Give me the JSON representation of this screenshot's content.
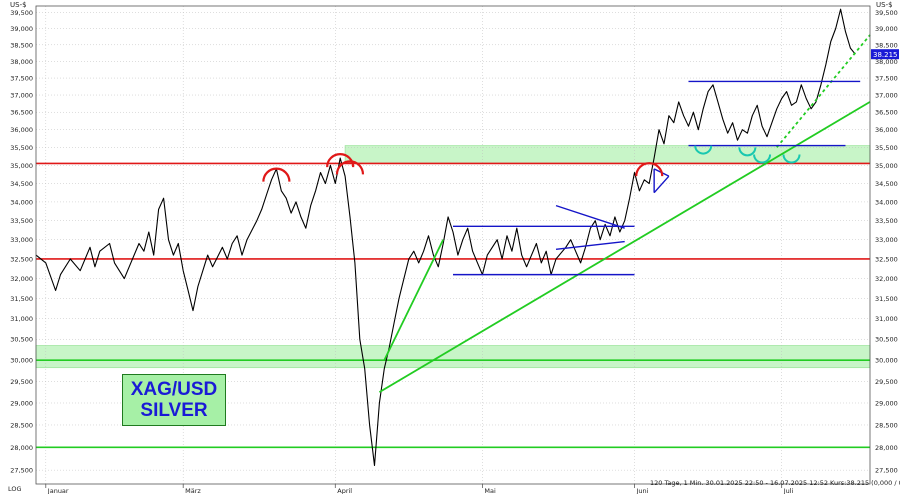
{
  "chart_data": {
    "type": "line",
    "title": "",
    "instrument": {
      "line1": "XAG/USD",
      "line2": "SILVER"
    },
    "unit_left": "US-$",
    "unit_right": "US-$",
    "scale_label": "LOG",
    "footer": "120 Tage, 1 Min. 30.01.2025 22:50 - 16.07.2025 12:52 Kurs:38.215 (0,000 / 0,000%)",
    "last_price_label": "38.215",
    "last_price": 38.215,
    "ylim": [
      27.2,
      39.7
    ],
    "yscale": "log",
    "y_ticks": [
      27.5,
      28.0,
      28.5,
      29.0,
      29.5,
      30.0,
      30.5,
      31.0,
      31.5,
      32.0,
      32.5,
      33.0,
      33.5,
      34.0,
      34.5,
      35.0,
      35.5,
      36.0,
      36.5,
      37.0,
      37.5,
      38.0,
      38.5,
      39.0,
      39.5
    ],
    "y_tick_labels": [
      "27,500",
      "28,000",
      "28,500",
      "29,000",
      "29,500",
      "30,000",
      "30,500",
      "31,000",
      "31,500",
      "32,000",
      "32,500",
      "33,000",
      "33,500",
      "34,000",
      "34,500",
      "35,000",
      "35,500",
      "36,000",
      "36,500",
      "37,000",
      "37,500",
      "38,000",
      "38,500",
      "39,000",
      "39,500"
    ],
    "xlim": [
      "2025-01-30",
      "2025-07-19"
    ],
    "x_ticks": [
      {
        "date": "2025-02-01",
        "label": "Januar"
      },
      {
        "date": "2025-03-01",
        "label": "März"
      },
      {
        "date": "2025-04-01",
        "label": "April"
      },
      {
        "date": "2025-05-01",
        "label": "Mai"
      },
      {
        "date": "2025-06-01",
        "label": "Juni"
      },
      {
        "date": "2025-07-01",
        "label": "Juli"
      }
    ],
    "grid": true,
    "series": [
      {
        "name": "",
        "color": "#000000",
        "points": [
          [
            "2025-01-30",
            32.6
          ],
          [
            "2025-02-01",
            32.4
          ],
          [
            "2025-02-03",
            31.7
          ],
          [
            "2025-02-04",
            32.1
          ],
          [
            "2025-02-06",
            32.5
          ],
          [
            "2025-02-08",
            32.2
          ],
          [
            "2025-02-10",
            32.8
          ],
          [
            "2025-02-11",
            32.3
          ],
          [
            "2025-02-12",
            32.7
          ],
          [
            "2025-02-14",
            32.9
          ],
          [
            "2025-02-15",
            32.4
          ],
          [
            "2025-02-17",
            32.0
          ],
          [
            "2025-02-18",
            32.3
          ],
          [
            "2025-02-20",
            32.9
          ],
          [
            "2025-02-21",
            32.7
          ],
          [
            "2025-02-22",
            33.2
          ],
          [
            "2025-02-23",
            32.6
          ],
          [
            "2025-02-24",
            33.8
          ],
          [
            "2025-02-25",
            34.1
          ],
          [
            "2025-02-26",
            33.0
          ],
          [
            "2025-02-27",
            32.6
          ],
          [
            "2025-02-28",
            32.9
          ],
          [
            "2025-03-01",
            32.2
          ],
          [
            "2025-03-02",
            31.7
          ],
          [
            "2025-03-03",
            31.2
          ],
          [
            "2025-03-04",
            31.8
          ],
          [
            "2025-03-06",
            32.6
          ],
          [
            "2025-03-07",
            32.3
          ],
          [
            "2025-03-09",
            32.8
          ],
          [
            "2025-03-10",
            32.5
          ],
          [
            "2025-03-11",
            32.9
          ],
          [
            "2025-03-12",
            33.1
          ],
          [
            "2025-03-13",
            32.6
          ],
          [
            "2025-03-14",
            33.0
          ],
          [
            "2025-03-16",
            33.5
          ],
          [
            "2025-03-17",
            33.8
          ],
          [
            "2025-03-18",
            34.2
          ],
          [
            "2025-03-19",
            34.6
          ],
          [
            "2025-03-20",
            34.9
          ],
          [
            "2025-03-21",
            34.3
          ],
          [
            "2025-03-22",
            34.1
          ],
          [
            "2025-03-23",
            33.7
          ],
          [
            "2025-03-24",
            34.0
          ],
          [
            "2025-03-25",
            33.6
          ],
          [
            "2025-03-26",
            33.3
          ],
          [
            "2025-03-27",
            33.9
          ],
          [
            "2025-03-28",
            34.3
          ],
          [
            "2025-03-29",
            34.8
          ],
          [
            "2025-03-30",
            34.5
          ],
          [
            "2025-03-31",
            35.0
          ],
          [
            "2025-04-01",
            34.5
          ],
          [
            "2025-04-02",
            35.2
          ],
          [
            "2025-04-03",
            34.7
          ],
          [
            "2025-04-04",
            33.6
          ],
          [
            "2025-04-05",
            32.4
          ],
          [
            "2025-04-06",
            30.5
          ],
          [
            "2025-04-07",
            29.8
          ],
          [
            "2025-04-08",
            28.5
          ],
          [
            "2025-04-09",
            27.6
          ],
          [
            "2025-04-10",
            29.0
          ],
          [
            "2025-04-11",
            29.8
          ],
          [
            "2025-04-12",
            30.3
          ],
          [
            "2025-04-13",
            30.9
          ],
          [
            "2025-04-14",
            31.5
          ],
          [
            "2025-04-15",
            32.0
          ],
          [
            "2025-04-16",
            32.5
          ],
          [
            "2025-04-17",
            32.7
          ],
          [
            "2025-04-18",
            32.4
          ],
          [
            "2025-04-19",
            32.7
          ],
          [
            "2025-04-20",
            33.1
          ],
          [
            "2025-04-21",
            32.6
          ],
          [
            "2025-04-22",
            32.3
          ],
          [
            "2025-04-23",
            32.9
          ],
          [
            "2025-04-24",
            33.6
          ],
          [
            "2025-04-25",
            33.2
          ],
          [
            "2025-04-26",
            32.6
          ],
          [
            "2025-04-27",
            33.0
          ],
          [
            "2025-04-28",
            33.3
          ],
          [
            "2025-04-29",
            32.7
          ],
          [
            "2025-04-30",
            32.4
          ],
          [
            "2025-05-01",
            32.1
          ],
          [
            "2025-05-02",
            32.6
          ],
          [
            "2025-05-04",
            33.0
          ],
          [
            "2025-05-05",
            32.5
          ],
          [
            "2025-05-06",
            33.1
          ],
          [
            "2025-05-07",
            32.7
          ],
          [
            "2025-05-08",
            33.3
          ],
          [
            "2025-05-09",
            32.6
          ],
          [
            "2025-05-10",
            32.3
          ],
          [
            "2025-05-12",
            32.9
          ],
          [
            "2025-05-13",
            32.4
          ],
          [
            "2025-05-14",
            32.7
          ],
          [
            "2025-05-15",
            32.1
          ],
          [
            "2025-05-16",
            32.5
          ],
          [
            "2025-05-18",
            32.8
          ],
          [
            "2025-05-19",
            33.0
          ],
          [
            "2025-05-20",
            32.7
          ],
          [
            "2025-05-21",
            32.4
          ],
          [
            "2025-05-22",
            32.8
          ],
          [
            "2025-05-23",
            33.3
          ],
          [
            "2025-05-24",
            33.5
          ],
          [
            "2025-05-25",
            33.0
          ],
          [
            "2025-05-26",
            33.4
          ],
          [
            "2025-05-27",
            33.1
          ],
          [
            "2025-05-28",
            33.6
          ],
          [
            "2025-05-29",
            33.2
          ],
          [
            "2025-05-30",
            33.5
          ],
          [
            "2025-05-31",
            34.1
          ],
          [
            "2025-06-01",
            34.8
          ],
          [
            "2025-06-02",
            34.3
          ],
          [
            "2025-06-03",
            34.6
          ],
          [
            "2025-06-04",
            34.5
          ],
          [
            "2025-06-05",
            35.2
          ],
          [
            "2025-06-06",
            36.0
          ],
          [
            "2025-06-07",
            35.6
          ],
          [
            "2025-06-08",
            36.4
          ],
          [
            "2025-06-09",
            36.2
          ],
          [
            "2025-06-10",
            36.8
          ],
          [
            "2025-06-11",
            36.4
          ],
          [
            "2025-06-12",
            36.1
          ],
          [
            "2025-06-13",
            36.5
          ],
          [
            "2025-06-14",
            36.0
          ],
          [
            "2025-06-15",
            36.6
          ],
          [
            "2025-06-16",
            37.1
          ],
          [
            "2025-06-17",
            37.3
          ],
          [
            "2025-06-18",
            36.8
          ],
          [
            "2025-06-19",
            36.3
          ],
          [
            "2025-06-20",
            35.9
          ],
          [
            "2025-06-21",
            36.2
          ],
          [
            "2025-06-22",
            35.7
          ],
          [
            "2025-06-23",
            36.0
          ],
          [
            "2025-06-24",
            35.9
          ],
          [
            "2025-06-25",
            36.4
          ],
          [
            "2025-06-26",
            36.7
          ],
          [
            "2025-06-27",
            36.1
          ],
          [
            "2025-06-28",
            35.8
          ],
          [
            "2025-06-29",
            36.2
          ],
          [
            "2025-06-30",
            36.6
          ],
          [
            "2025-07-01",
            36.9
          ],
          [
            "2025-07-02",
            37.1
          ],
          [
            "2025-07-03",
            36.7
          ],
          [
            "2025-07-04",
            36.8
          ],
          [
            "2025-07-05",
            37.3
          ],
          [
            "2025-07-06",
            36.9
          ],
          [
            "2025-07-07",
            36.6
          ],
          [
            "2025-07-08",
            36.8
          ],
          [
            "2025-07-09",
            37.3
          ],
          [
            "2025-07-10",
            37.9
          ],
          [
            "2025-07-11",
            38.6
          ],
          [
            "2025-07-12",
            39.0
          ],
          [
            "2025-07-13",
            39.6
          ],
          [
            "2025-07-14",
            38.9
          ],
          [
            "2025-07-15",
            38.4
          ],
          [
            "2025-07-16",
            38.215
          ]
        ]
      }
    ],
    "annotations": {
      "horizontal_lines": [
        {
          "y": 35.05,
          "color": "#e01818"
        },
        {
          "y": 32.5,
          "color": "#e01818"
        },
        {
          "y": 30.0,
          "color": "#22cc22"
        },
        {
          "y": 28.0,
          "color": "#22cc22"
        }
      ],
      "zones": [
        {
          "y_from": 35.05,
          "y_to": 35.55,
          "x_from": "2025-04-03",
          "x_to": "2025-07-19",
          "color": "#c8f5c8"
        },
        {
          "y_from": 29.82,
          "y_to": 30.35,
          "x_from": "2025-01-30",
          "x_to": "2025-07-19",
          "color": "#c8f5c8"
        }
      ],
      "trendlines": [
        {
          "from": [
            "2025-04-10",
            29.25
          ],
          "to": [
            "2025-07-19",
            36.8
          ],
          "color": "#22cc22",
          "dashed": false
        },
        {
          "from": [
            "2025-06-30",
            35.5
          ],
          "to": [
            "2025-07-19",
            38.8
          ],
          "color": "#22cc22",
          "dashed": true
        },
        {
          "from": [
            "2025-04-11",
            30.0
          ],
          "to": [
            "2025-04-23",
            33.0
          ],
          "color": "#22cc22",
          "dashed": false
        }
      ],
      "blue_lines": [
        {
          "from": [
            "2025-04-25",
            33.35
          ],
          "to": [
            "2025-06-01",
            33.35
          ]
        },
        {
          "from": [
            "2025-04-25",
            32.1
          ],
          "to": [
            "2025-06-01",
            32.1
          ]
        },
        {
          "from": [
            "2025-06-12",
            37.4
          ],
          "to": [
            "2025-07-17",
            37.4
          ]
        },
        {
          "from": [
            "2025-06-12",
            35.55
          ],
          "to": [
            "2025-07-14",
            35.55
          ]
        },
        {
          "from": [
            "2025-05-16",
            33.9
          ],
          "to": [
            "2025-05-30",
            33.3
          ]
        },
        {
          "from": [
            "2025-05-16",
            32.75
          ],
          "to": [
            "2025-05-30",
            32.95
          ]
        },
        {
          "from": [
            "2025-06-05",
            34.25
          ],
          "to": [
            "2025-06-08",
            34.7
          ]
        },
        {
          "from": [
            "2025-06-05",
            34.9
          ],
          "to": [
            "2025-06-08",
            34.7
          ]
        },
        {
          "from": [
            "2025-06-05",
            34.25
          ],
          "to": [
            "2025-06-05",
            34.9
          ]
        }
      ],
      "arcs_red": [
        {
          "x": "2025-03-20",
          "y": 34.55
        },
        {
          "x": "2025-04-02",
          "y": 34.95
        },
        {
          "x": "2025-04-04",
          "y": 34.75
        },
        {
          "x": "2025-06-04",
          "y": 34.7
        }
      ],
      "arcs_cyan": [
        {
          "x": "2025-06-15",
          "y": 35.55
        },
        {
          "x": "2025-06-24",
          "y": 35.5
        },
        {
          "x": "2025-06-27",
          "y": 35.3
        },
        {
          "x": "2025-07-03",
          "y": 35.3
        }
      ]
    }
  }
}
